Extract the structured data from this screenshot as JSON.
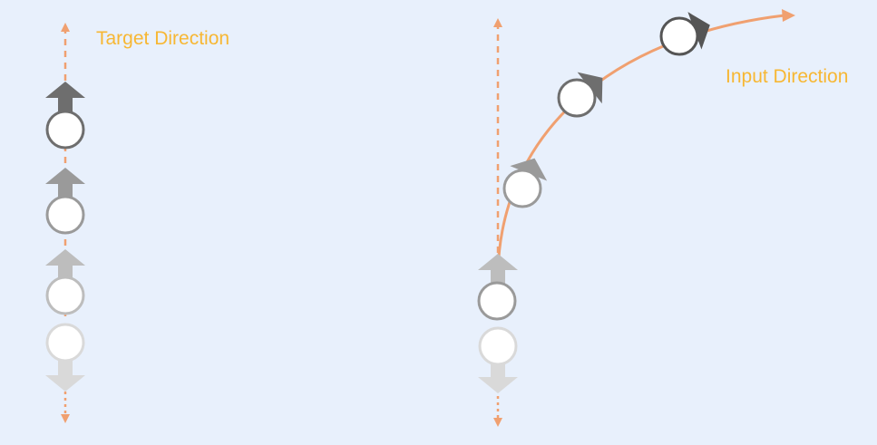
{
  "labels": {
    "target_direction": "Target Direction",
    "input_direction": "Input Direction"
  },
  "colors": {
    "background": "#e8f0fc",
    "label_text": "#f7b733",
    "guide_line": "#f0a070",
    "circle_fill": "#ffffff",
    "step_shades": [
      "#d9d9d9",
      "#bdbdbd",
      "#9a9a9a",
      "#6e6e6e",
      "#555555"
    ]
  }
}
